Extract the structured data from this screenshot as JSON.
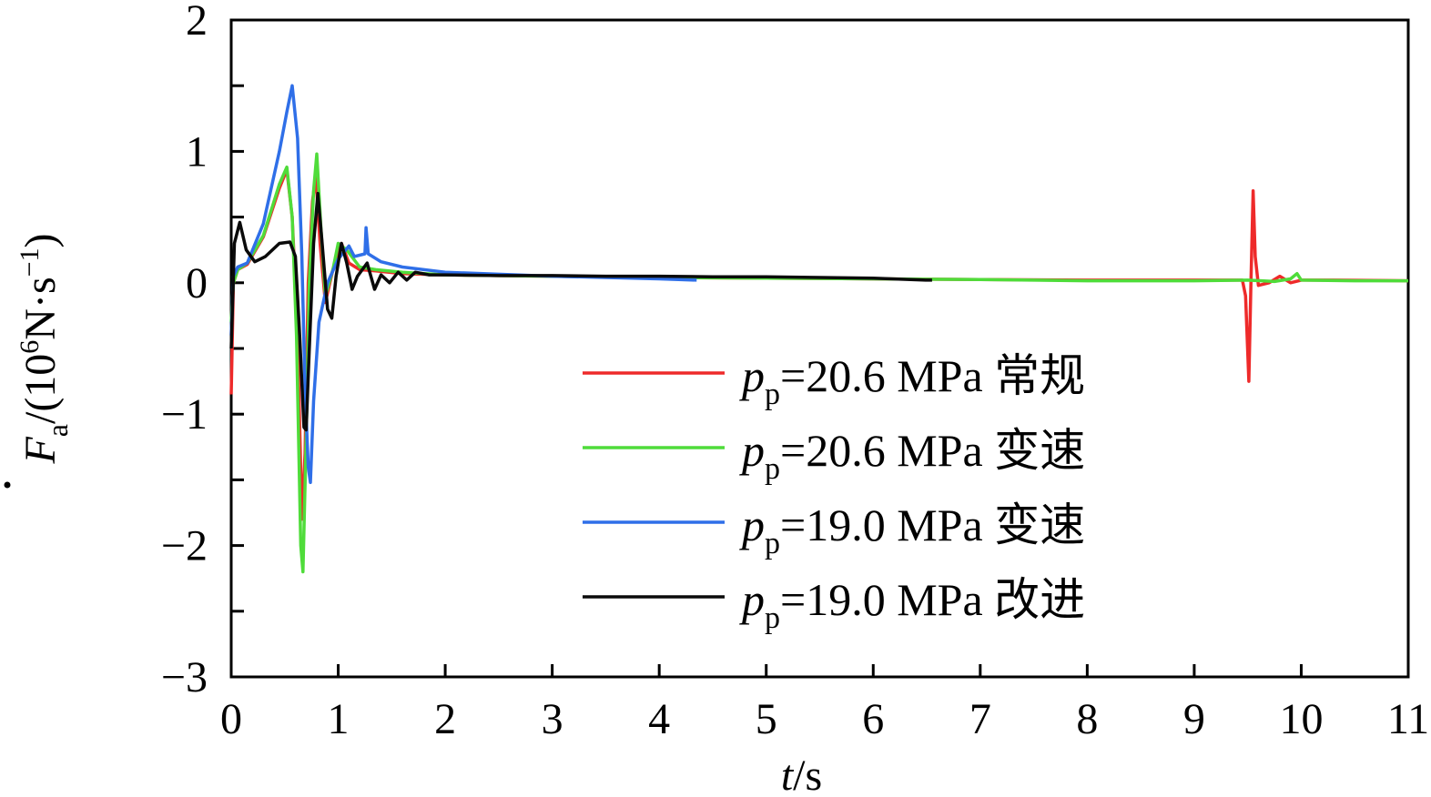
{
  "chart_data": {
    "type": "line",
    "xlabel": {
      "var": "t",
      "unit": "/s"
    },
    "ylabel": {
      "var": "F",
      "sub": "a",
      "unit_pre": "/(10",
      "unit_sup": "6",
      "unit_mid": "N·s",
      "unit_sup2": "−1",
      "unit_post": ")"
    },
    "xlim": [
      0,
      11
    ],
    "ylim": [
      -3,
      2
    ],
    "xticks": [
      0,
      1,
      2,
      3,
      4,
      5,
      6,
      7,
      8,
      9,
      10,
      11
    ],
    "xtick_labels": [
      "0",
      "1",
      "2",
      "3",
      "4",
      "5",
      "6",
      "7",
      "8",
      "9",
      "10",
      "11"
    ],
    "yticks": [
      -3,
      -2.5,
      -2,
      -1.5,
      -1,
      -0.5,
      0,
      0.5,
      1,
      1.5,
      2
    ],
    "ytick_labels": [
      {
        "v": -3,
        "t": "−3"
      },
      {
        "v": -2,
        "t": "−2"
      },
      {
        "v": -1,
        "t": "−1"
      },
      {
        "v": 0,
        "t": "0"
      },
      {
        "v": 1,
        "t": "1"
      },
      {
        "v": 2,
        "t": "2"
      }
    ],
    "grid": false,
    "legend_position": "lower-right",
    "series": [
      {
        "name": "=20.6 MPa 常规",
        "var": "p",
        "sub": "p",
        "color": "#ee2a2a",
        "points": [
          [
            0,
            -0.85
          ],
          [
            0.02,
            0.0
          ],
          [
            0.06,
            0.1
          ],
          [
            0.15,
            0.14
          ],
          [
            0.3,
            0.35
          ],
          [
            0.45,
            0.72
          ],
          [
            0.52,
            0.86
          ],
          [
            0.57,
            0.5
          ],
          [
            0.62,
            -0.4
          ],
          [
            0.66,
            -1.8
          ],
          [
            0.69,
            -1.3
          ],
          [
            0.72,
            0.0
          ],
          [
            0.76,
            0.62
          ],
          [
            0.79,
            0.82
          ],
          [
            0.83,
            0.3
          ],
          [
            0.88,
            -0.15
          ],
          [
            0.95,
            0.1
          ],
          [
            1.03,
            0.3
          ],
          [
            1.1,
            0.15
          ],
          [
            1.2,
            0.1
          ],
          [
            1.35,
            0.09
          ],
          [
            1.6,
            0.07
          ],
          [
            2,
            0.06
          ],
          [
            3,
            0.05
          ],
          [
            4,
            0.04
          ],
          [
            5,
            0.035
          ],
          [
            6,
            0.03
          ],
          [
            7,
            0.025
          ],
          [
            8,
            0.02
          ],
          [
            9,
            0.02
          ],
          [
            9.45,
            0.02
          ],
          [
            9.48,
            -0.1
          ],
          [
            9.51,
            -0.75
          ],
          [
            9.53,
            0.0
          ],
          [
            9.55,
            0.7
          ],
          [
            9.57,
            0.2
          ],
          [
            9.6,
            -0.02
          ],
          [
            9.7,
            0.0
          ],
          [
            9.8,
            0.05
          ],
          [
            9.9,
            0.0
          ],
          [
            10,
            0.02
          ],
          [
            10.3,
            0.02
          ],
          [
            11,
            0.015
          ]
        ]
      },
      {
        "name": "=20.6 MPa 变速",
        "var": "p",
        "sub": "p",
        "color": "#4fdc3a",
        "points": [
          [
            0,
            -0.3
          ],
          [
            0.02,
            0.0
          ],
          [
            0.06,
            0.1
          ],
          [
            0.15,
            0.15
          ],
          [
            0.3,
            0.36
          ],
          [
            0.45,
            0.75
          ],
          [
            0.52,
            0.88
          ],
          [
            0.57,
            0.5
          ],
          [
            0.61,
            -0.4
          ],
          [
            0.65,
            -2.0
          ],
          [
            0.67,
            -2.2
          ],
          [
            0.7,
            -1.2
          ],
          [
            0.73,
            0.0
          ],
          [
            0.77,
            0.7
          ],
          [
            0.8,
            0.98
          ],
          [
            0.84,
            0.4
          ],
          [
            0.88,
            -0.1
          ],
          [
            0.95,
            0.1
          ],
          [
            1.0,
            0.3
          ],
          [
            1.08,
            0.25
          ],
          [
            1.2,
            0.12
          ],
          [
            1.35,
            0.1
          ],
          [
            1.6,
            0.08
          ],
          [
            2,
            0.06
          ],
          [
            3,
            0.05
          ],
          [
            4,
            0.04
          ],
          [
            5,
            0.035
          ],
          [
            6,
            0.03
          ],
          [
            7,
            0.025
          ],
          [
            8,
            0.015
          ],
          [
            9,
            0.015
          ],
          [
            9.5,
            0.02
          ],
          [
            9.75,
            0.01
          ],
          [
            9.9,
            0.03
          ],
          [
            9.96,
            0.07
          ],
          [
            10.0,
            0.02
          ],
          [
            10.5,
            0.015
          ],
          [
            11,
            0.015
          ]
        ]
      },
      {
        "name": "=19.0 MPa 变速",
        "var": "p",
        "sub": "p",
        "color": "#2f6fe8",
        "points": [
          [
            0,
            -0.4
          ],
          [
            0.02,
            0.05
          ],
          [
            0.06,
            0.12
          ],
          [
            0.15,
            0.15
          ],
          [
            0.3,
            0.45
          ],
          [
            0.45,
            1.0
          ],
          [
            0.52,
            1.3
          ],
          [
            0.57,
            1.5
          ],
          [
            0.62,
            1.1
          ],
          [
            0.66,
            0.2
          ],
          [
            0.69,
            -0.8
          ],
          [
            0.72,
            -1.4
          ],
          [
            0.74,
            -1.52
          ],
          [
            0.77,
            -0.9
          ],
          [
            0.82,
            -0.3
          ],
          [
            0.9,
            0.0
          ],
          [
            1.0,
            0.18
          ],
          [
            1.1,
            0.28
          ],
          [
            1.15,
            0.2
          ],
          [
            1.25,
            0.22
          ],
          [
            1.26,
            0.42
          ],
          [
            1.28,
            0.22
          ],
          [
            1.4,
            0.16
          ],
          [
            1.6,
            0.12
          ],
          [
            2,
            0.08
          ],
          [
            3,
            0.05
          ],
          [
            4,
            0.03
          ],
          [
            4.35,
            0.02
          ]
        ]
      },
      {
        "name": "=19.0 MPa 改进",
        "var": "p",
        "sub": "p",
        "color": "#0a0a0a",
        "points": [
          [
            0,
            -0.5
          ],
          [
            0.03,
            0.3
          ],
          [
            0.08,
            0.46
          ],
          [
            0.14,
            0.25
          ],
          [
            0.22,
            0.16
          ],
          [
            0.32,
            0.2
          ],
          [
            0.45,
            0.3
          ],
          [
            0.55,
            0.31
          ],
          [
            0.6,
            0.2
          ],
          [
            0.64,
            -0.4
          ],
          [
            0.68,
            -1.1
          ],
          [
            0.7,
            -1.12
          ],
          [
            0.73,
            -0.5
          ],
          [
            0.77,
            0.3
          ],
          [
            0.81,
            0.68
          ],
          [
            0.85,
            0.3
          ],
          [
            0.9,
            -0.2
          ],
          [
            0.94,
            -0.27
          ],
          [
            0.98,
            0.05
          ],
          [
            1.03,
            0.3
          ],
          [
            1.08,
            0.15
          ],
          [
            1.13,
            -0.05
          ],
          [
            1.18,
            0.05
          ],
          [
            1.27,
            0.15
          ],
          [
            1.34,
            -0.05
          ],
          [
            1.4,
            0.06
          ],
          [
            1.48,
            0.0
          ],
          [
            1.56,
            0.08
          ],
          [
            1.64,
            0.02
          ],
          [
            1.72,
            0.08
          ],
          [
            1.85,
            0.06
          ],
          [
            2,
            0.06
          ],
          [
            2.5,
            0.055
          ],
          [
            3,
            0.055
          ],
          [
            3.5,
            0.05
          ],
          [
            4,
            0.05
          ],
          [
            4.5,
            0.045
          ],
          [
            5,
            0.045
          ],
          [
            5.5,
            0.04
          ],
          [
            6,
            0.035
          ],
          [
            6.5,
            0.02
          ],
          [
            6.55,
            0.02
          ]
        ]
      }
    ]
  }
}
